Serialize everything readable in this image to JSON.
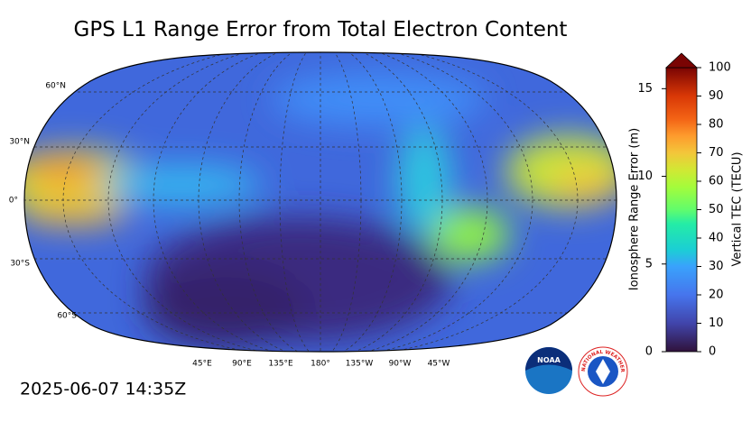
{
  "title": "GPS L1 Range Error from Total Electron Content",
  "timestamp": "2025-06-07 14:35Z",
  "map": {
    "lat_labels": [
      "60°N",
      "30°N",
      "0°",
      "30°S",
      "60°S"
    ],
    "lon_labels": [
      "45°E",
      "90°E",
      "135°E",
      "180°",
      "135°W",
      "90°W",
      "45°W"
    ]
  },
  "colorbar": {
    "left_label": "Ionosphere Range Error (m)",
    "left_lim": [
      0,
      16.2
    ],
    "left_ticks": [
      0,
      5,
      10,
      15
    ],
    "right_label": "Vertical TEC (TECU)",
    "right_lim": [
      0,
      100
    ],
    "right_ticks": [
      0,
      10,
      20,
      30,
      40,
      50,
      60,
      70,
      80,
      90,
      100
    ]
  },
  "logos": {
    "noaa": "NOAA",
    "nws": "NATIONAL WEATHER SERVICE"
  }
}
